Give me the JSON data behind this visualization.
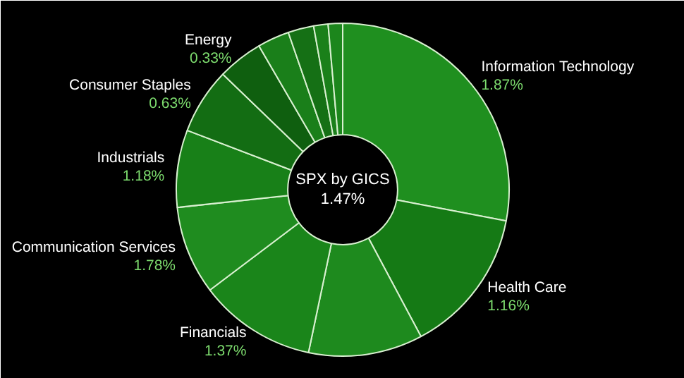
{
  "chart_data": {
    "type": "donut",
    "title": "SPX by GICS",
    "subtitle": "1.47%",
    "categories": [
      "Information Technology",
      "Health Care",
      null,
      "Financials",
      "Communication Services",
      "Industrials",
      "Consumer Staples",
      "Energy",
      null,
      null,
      null,
      null
    ],
    "values": [
      28.0,
      14.2,
      11.1,
      11.4,
      8.6,
      7.5,
      6.4,
      4.4,
      3.1,
      2.5,
      1.4,
      1.4
    ],
    "colors": [
      "#1f8f1f",
      "#157a15",
      "#1e8a1e",
      "#1a851a",
      "#1f8c1f",
      "#188018",
      "#136d13",
      "#0f5f0f",
      "#1a7f1a",
      "#157015",
      "#1a801a",
      "#1c861c"
    ],
    "annotations": [
      {
        "text": "1.87%",
        "x": "Information Technology"
      },
      {
        "text": "1.16%",
        "x": "Health Care"
      },
      {
        "text": "1.37%",
        "x": "Financials"
      },
      {
        "text": "1.78%",
        "x": "Communication Services"
      },
      {
        "text": "1.18%",
        "x": "Industrials"
      },
      {
        "text": "0.63%",
        "x": "Consumer Staples"
      },
      {
        "text": "0.33%",
        "x": "Energy"
      }
    ]
  }
}
